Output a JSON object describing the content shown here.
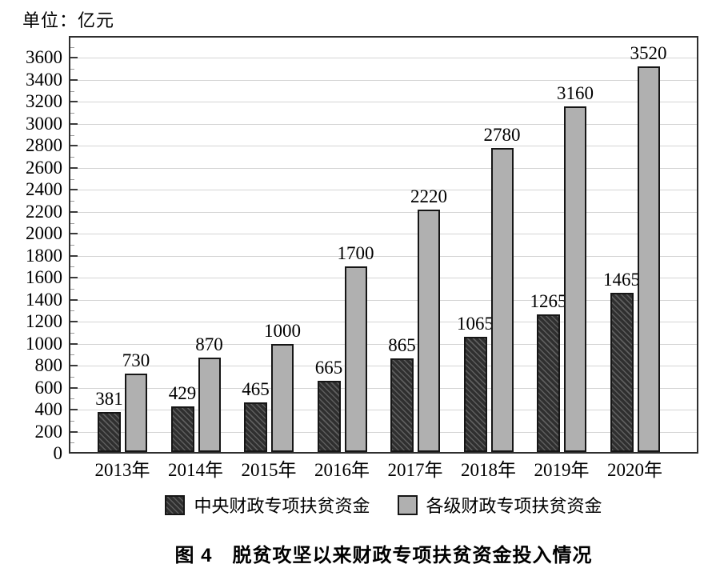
{
  "unit_label": "单位：亿元",
  "figure_caption": "图 4　脱贫攻坚以来财政专项扶贫资金投入情况",
  "colors": {
    "dark_bar": "#343434",
    "dark_bar_hatch": "#5e5e5e",
    "light_bar": "#b0b0b0",
    "bar_border": "#161616",
    "gridline": "#d4d4d4",
    "axis": "#2f2f2f",
    "text": "#000000"
  },
  "chart_data": {
    "type": "bar",
    "title": "图 4　脱贫攻坚以来财政专项扶贫资金投入情况",
    "unit": "亿元",
    "categories": [
      "2013年",
      "2014年",
      "2015年",
      "2016年",
      "2017年",
      "2018年",
      "2019年",
      "2020年"
    ],
    "series": [
      {
        "name": "中央财政专项扶贫资金",
        "pattern": "diagonal-hatch",
        "values": [
          381,
          429,
          465,
          665,
          865,
          1065,
          1265,
          1465
        ]
      },
      {
        "name": "各级财政专项扶贫资金",
        "pattern": "solid",
        "values": [
          730,
          870,
          1000,
          1700,
          2220,
          2780,
          3160,
          3520
        ]
      }
    ],
    "ylim": [
      0,
      3800
    ],
    "ytick_step": 200,
    "yticks": [
      0,
      200,
      400,
      600,
      800,
      1000,
      1200,
      1400,
      1600,
      1800,
      2000,
      2200,
      2400,
      2600,
      2800,
      3000,
      3200,
      3400,
      3600
    ],
    "grid": true,
    "data_labels": true,
    "legend_position": "bottom"
  }
}
